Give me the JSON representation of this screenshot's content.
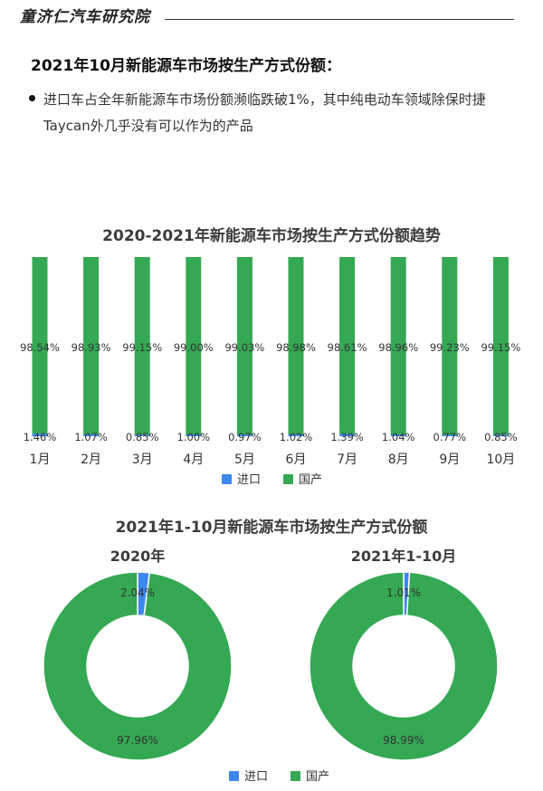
{
  "header": {
    "brand": "童济仁汽车研究院"
  },
  "section": {
    "title": "2021年10月新能源车市场按生产方式份额：",
    "bullet": "进口车占全年新能源车市场份额濒临跌破1%，其中纯电动车领域除保时捷Taycan外几乎没有可以作为的产品"
  },
  "colors": {
    "import": "#3c87f0",
    "domestic": "#34a853"
  },
  "chart_data": [
    {
      "type": "bar",
      "stacked": true,
      "title": "2020-2021年新能源车市场按生产方式份额趋势",
      "categories": [
        "1月",
        "2月",
        "3月",
        "4月",
        "5月",
        "6月",
        "7月",
        "8月",
        "9月",
        "10月"
      ],
      "series": [
        {
          "name": "进口",
          "values": [
            1.46,
            1.07,
            0.85,
            1.0,
            0.97,
            1.02,
            1.39,
            1.04,
            0.77,
            0.85
          ],
          "labels": [
            "1.46%",
            "1.07%",
            "0.85%",
            "1.00%",
            "0.97%",
            "1.02%",
            "1.39%",
            "1.04%",
            "0.77%",
            "0.85%"
          ]
        },
        {
          "name": "国产",
          "values": [
            98.54,
            98.93,
            99.15,
            99.0,
            99.03,
            98.98,
            98.61,
            98.96,
            99.23,
            99.15
          ],
          "labels": [
            "98.54%",
            "98.93%",
            "99.15%",
            "99.00%",
            "99.03%",
            "98.98%",
            "98.61%",
            "98.96%",
            "99.23%",
            "99.15%"
          ]
        }
      ],
      "ylim": [
        0,
        100
      ],
      "legend": "bottom"
    },
    {
      "type": "pie",
      "title": "2021年1-10月新能源车市场按生产方式份额",
      "charts": [
        {
          "subtitle": "2020年",
          "slices": [
            {
              "name": "进口",
              "value": 2.04,
              "label": "2.04%"
            },
            {
              "name": "国产",
              "value": 97.96,
              "label": "97.96%"
            }
          ]
        },
        {
          "subtitle": "2021年1-10月",
          "slices": [
            {
              "name": "进口",
              "value": 1.01,
              "label": "1.01%"
            },
            {
              "name": "国产",
              "value": 98.99,
              "label": "98.99%"
            }
          ]
        }
      ],
      "legend": "bottom"
    }
  ]
}
